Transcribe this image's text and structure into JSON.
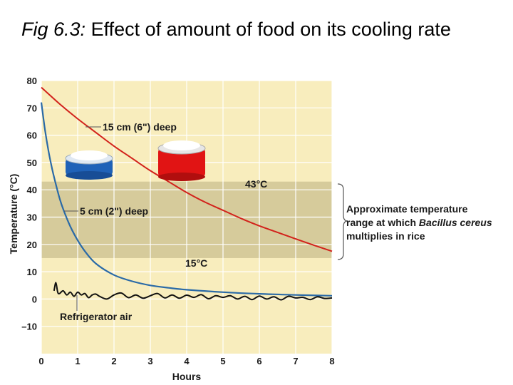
{
  "title": {
    "fig": "Fig 6.3:",
    "text": "Effect of amount of food on its cooling rate"
  },
  "colors": {
    "plot_bg": "#f8edbd",
    "band": "#d6cb9b",
    "grid": "#ffffff",
    "deep_line": "#d2221b",
    "shallow_line": "#2a6aa7",
    "air_line": "#111111",
    "pan_red": "#e11414",
    "pan_blue": "#1f62b8"
  },
  "chart_data": {
    "type": "line",
    "xlabel": "Hours",
    "ylabel": "Temperature (°C)",
    "xlim": [
      0,
      8
    ],
    "ylim": [
      -20,
      80
    ],
    "x_ticks": [
      0,
      1,
      2,
      3,
      4,
      5,
      6,
      7,
      8
    ],
    "y_ticks": [
      80,
      70,
      60,
      50,
      40,
      30,
      20,
      10,
      0,
      -10
    ],
    "y_tick_labels": [
      "80",
      "70",
      "60",
      "50",
      "40",
      "30",
      "20",
      "10",
      "0",
      "–10"
    ],
    "band": {
      "low": 15,
      "high": 43,
      "low_label": "15°C",
      "high_label": "43°C"
    },
    "series": [
      {
        "name": "15 cm (6\") deep",
        "color": "#d2221b",
        "x": [
          0,
          0.5,
          1,
          1.5,
          2,
          2.5,
          3,
          3.5,
          4,
          4.5,
          5,
          5.5,
          6,
          6.5,
          7,
          7.5,
          8
        ],
        "values": [
          77.5,
          71.5,
          66,
          61,
          56,
          51.5,
          47,
          43,
          39,
          35.5,
          32.5,
          29.5,
          26.8,
          24.4,
          22,
          19.7,
          17.5
        ]
      },
      {
        "name": "5 cm (2\") deep",
        "color": "#2a6aa7",
        "x": [
          0,
          0.1,
          0.2,
          0.3,
          0.4,
          0.5,
          0.6,
          0.8,
          1,
          1.2,
          1.5,
          2,
          2.5,
          3,
          3.5,
          4,
          5,
          6,
          7,
          8
        ],
        "values": [
          72,
          62,
          54,
          47.5,
          42,
          37,
          33,
          26.5,
          21.5,
          17.5,
          13,
          8.8,
          6.5,
          5,
          4.1,
          3.4,
          2.5,
          1.9,
          1.5,
          1.2
        ]
      },
      {
        "name": "Refrigerator air",
        "color": "#111111",
        "x": [
          0.35,
          0.4,
          0.45,
          0.5,
          0.6,
          0.7,
          0.8,
          0.9,
          1.0,
          1.1,
          1.2,
          1.3,
          1.4,
          1.5,
          1.6,
          1.8,
          2.0,
          2.2,
          2.4,
          2.6,
          2.8,
          3.0,
          3.2,
          3.4,
          3.6,
          3.8,
          4.0,
          4.2,
          4.4,
          4.6,
          4.8,
          5.0,
          5.2,
          5.4,
          5.6,
          5.8,
          6.0,
          6.2,
          6.4,
          6.6,
          6.8,
          7.0,
          7.2,
          7.4,
          7.6,
          7.8,
          8.0
        ],
        "values": [
          3,
          6,
          2.5,
          2,
          3,
          1.5,
          2.5,
          1,
          2.5,
          1.5,
          2,
          0.5,
          1.5,
          1.8,
          1,
          0,
          1.5,
          2.2,
          0.5,
          1.5,
          0.3,
          1.2,
          2.0,
          0.4,
          1.5,
          0.3,
          1.4,
          0.6,
          1.6,
          0.1,
          1.2,
          0.6,
          1.2,
          0.0,
          1.0,
          -0.2,
          1.1,
          0.0,
          0.8,
          -0.3,
          1.0,
          0.4,
          0.6,
          -0.2,
          0.8,
          0.2,
          0.4
        ]
      }
    ],
    "annotations": {
      "deep_label": "15 cm (6\") deep",
      "shallow_label": "5 cm (2\") deep",
      "air_label": "Refrigerator air",
      "range_line1": "Approximate temperature",
      "range_line2_prefix": "range at which ",
      "range_line2_italic": "Bacillus cereus",
      "range_line3": "multiplies in rice"
    }
  }
}
